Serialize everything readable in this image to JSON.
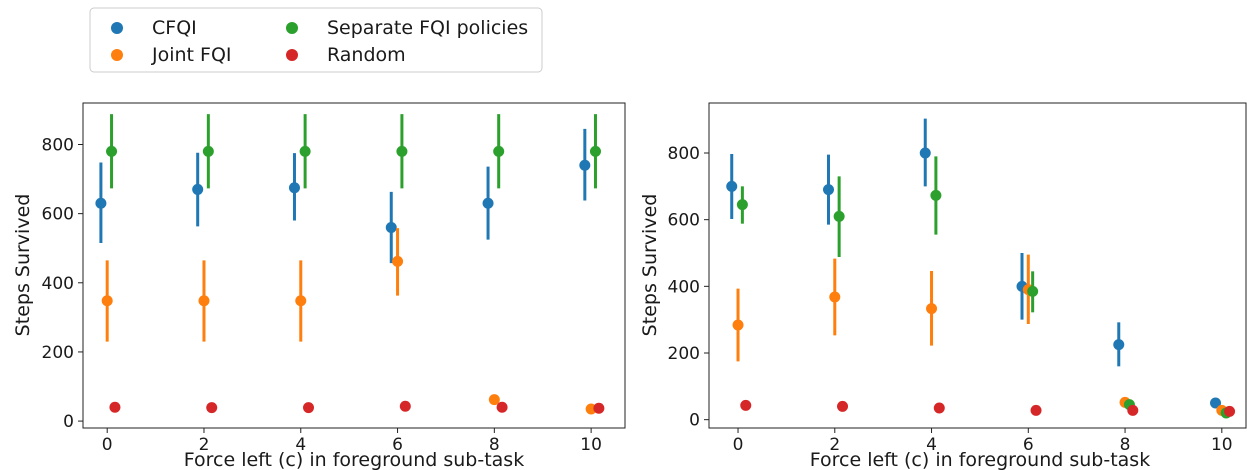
{
  "legend": {
    "entries": [
      {
        "name": "CFQI",
        "color": "#1f77b4"
      },
      {
        "name": "Joint FQI",
        "color": "#ff7f0e"
      },
      {
        "name": "Separate FQI policies",
        "color": "#2ca02c"
      },
      {
        "name": "Random",
        "color": "#d62728"
      }
    ],
    "placement": "top-left above charts"
  },
  "chart_data": [
    {
      "type": "scatter",
      "xlabel": "Force left (c) in foreground sub-task",
      "ylabel": "Steps Survived",
      "xticks": [
        0,
        2,
        4,
        6,
        8,
        10
      ],
      "yticks": [
        0,
        200,
        400,
        600,
        800
      ],
      "xlim": [
        -0.5,
        10.7
      ],
      "ylim": [
        -20,
        920
      ],
      "grid": false,
      "series": [
        {
          "name": "CFQI",
          "color": "#1f77b4",
          "x": [
            0,
            2,
            4,
            6,
            8,
            10
          ],
          "y": [
            630,
            670,
            675,
            560,
            630,
            740
          ],
          "err_low": [
            515,
            563,
            580,
            457,
            525,
            638
          ],
          "err_high": [
            748,
            776,
            775,
            663,
            736,
            845
          ]
        },
        {
          "name": "Joint FQI",
          "color": "#ff7f0e",
          "x": [
            0,
            2,
            4,
            6,
            8,
            10
          ],
          "y": [
            348,
            348,
            348,
            462,
            62,
            35
          ],
          "err_low": [
            230,
            230,
            230,
            363,
            null,
            null
          ],
          "err_high": [
            465,
            465,
            465,
            558,
            null,
            null
          ]
        },
        {
          "name": "Separate FQI policies",
          "color": "#2ca02c",
          "x": [
            0,
            2,
            4,
            6,
            8,
            10
          ],
          "y": [
            780,
            780,
            780,
            780,
            780,
            780
          ],
          "err_low": [
            673,
            673,
            673,
            673,
            673,
            673
          ],
          "err_high": [
            888,
            888,
            888,
            888,
            888,
            888
          ]
        },
        {
          "name": "Random",
          "color": "#d62728",
          "x": [
            0,
            2,
            4,
            6,
            8,
            10
          ],
          "y": [
            40,
            39,
            39,
            43,
            40,
            37
          ],
          "err_low": [
            null,
            null,
            null,
            null,
            null,
            null
          ],
          "err_high": [
            null,
            null,
            null,
            null,
            null,
            null
          ]
        }
      ]
    },
    {
      "type": "scatter",
      "xlabel": "Force left (c) in foreground sub-task",
      "ylabel": "Steps Survived",
      "xticks": [
        0,
        2,
        4,
        6,
        8,
        10
      ],
      "yticks": [
        0,
        200,
        400,
        600,
        800
      ],
      "xlim": [
        -0.6,
        10.5
      ],
      "ylim": [
        -25,
        950
      ],
      "grid": false,
      "series": [
        {
          "name": "CFQI",
          "color": "#1f77b4",
          "x": [
            0,
            2,
            4,
            6,
            8,
            10
          ],
          "y": [
            700,
            690,
            800,
            400,
            225,
            50
          ],
          "err_low": [
            602,
            585,
            700,
            300,
            160,
            null
          ],
          "err_high": [
            797,
            795,
            903,
            500,
            292,
            null
          ]
        },
        {
          "name": "Joint FQI",
          "color": "#ff7f0e",
          "x": [
            0,
            2,
            4,
            6,
            8,
            10
          ],
          "y": [
            284,
            368,
            333,
            390,
            52,
            28
          ],
          "err_low": [
            175,
            253,
            222,
            287,
            null,
            null
          ],
          "err_high": [
            393,
            483,
            446,
            495,
            null,
            null
          ]
        },
        {
          "name": "Separate FQI policies",
          "color": "#2ca02c",
          "x": [
            0,
            2,
            4,
            6,
            8,
            10
          ],
          "y": [
            645,
            610,
            673,
            385,
            45,
            20
          ],
          "err_low": [
            588,
            488,
            555,
            322,
            null,
            null
          ],
          "err_high": [
            700,
            730,
            790,
            445,
            null,
            null
          ]
        },
        {
          "name": "Random",
          "color": "#d62728",
          "x": [
            0,
            2,
            4,
            6,
            8,
            10
          ],
          "y": [
            43,
            40,
            35,
            28,
            28,
            25
          ],
          "err_low": [
            null,
            null,
            null,
            null,
            null,
            null
          ],
          "err_high": [
            null,
            null,
            null,
            null,
            null,
            null
          ]
        }
      ]
    }
  ]
}
